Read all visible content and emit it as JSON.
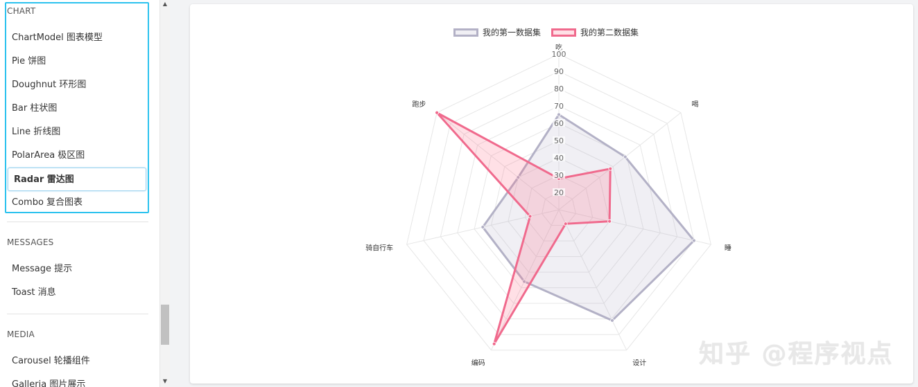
{
  "sidebar": {
    "chart_section": {
      "header": "CHART",
      "items": [
        {
          "label": "ChartModel 图表模型"
        },
        {
          "label": "Pie 饼图"
        },
        {
          "label": "Doughnut 环形图"
        },
        {
          "label": "Bar 柱状图"
        },
        {
          "label": "Line 折线图"
        },
        {
          "label": "PolarArea 极区图"
        },
        {
          "label": "Radar 雷达图",
          "active": true
        },
        {
          "label": "Combo 复合图表"
        }
      ]
    },
    "messages_section": {
      "header": "MESSAGES",
      "items": [
        {
          "label": "Message 提示"
        },
        {
          "label": "Toast 消息"
        }
      ]
    },
    "media_section": {
      "header": "MEDIA",
      "items": [
        {
          "label": "Carousel 轮播组件"
        },
        {
          "label": "Galleria 图片展示"
        }
      ]
    }
  },
  "watermark": "知乎 @程序视点",
  "chart_data": {
    "type": "radar",
    "categories": [
      "吃",
      "喝",
      "睡",
      "设计",
      "编码",
      "骑自行车",
      "跑步"
    ],
    "series": [
      {
        "name": "我的第一数据集",
        "values": [
          65,
          59,
          90,
          81,
          56,
          55,
          40
        ],
        "border_color": "#b3b1c6",
        "fill_color": "rgba(179,177,198,0.2)"
      },
      {
        "name": "我的第二数据集",
        "values": [
          28,
          48,
          40,
          19,
          96,
          27,
          100
        ],
        "border_color": "#f06a8d",
        "fill_color": "rgba(255,99,132,0.2)"
      }
    ],
    "r_ticks": [
      "20",
      "30",
      "40",
      "50",
      "60",
      "70",
      "80",
      "90",
      "100"
    ],
    "r_min": 10,
    "r_max": 100,
    "legend_position": "top",
    "grid": true
  }
}
